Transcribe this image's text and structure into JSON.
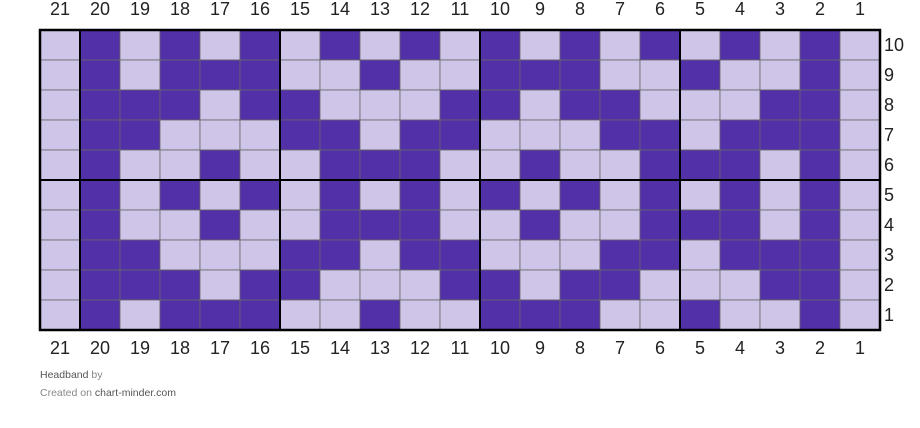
{
  "chart": {
    "columns": [
      21,
      20,
      19,
      18,
      17,
      16,
      15,
      14,
      13,
      12,
      11,
      10,
      9,
      8,
      7,
      6,
      5,
      4,
      3,
      2,
      1
    ],
    "rows": [
      {
        "label": 10,
        "cells": [
          0,
          1,
          0,
          1,
          0,
          1,
          0,
          1,
          0,
          1,
          0,
          1,
          0,
          1,
          0,
          1,
          0,
          1,
          0,
          1,
          0
        ]
      },
      {
        "label": 9,
        "cells": [
          0,
          1,
          0,
          1,
          1,
          1,
          0,
          0,
          1,
          0,
          0,
          1,
          1,
          1,
          0,
          0,
          1,
          0,
          0,
          1,
          0
        ]
      },
      {
        "label": 8,
        "cells": [
          0,
          1,
          1,
          1,
          0,
          1,
          1,
          0,
          0,
          0,
          1,
          1,
          0,
          1,
          1,
          0,
          0,
          0,
          1,
          1,
          0
        ]
      },
      {
        "label": 7,
        "cells": [
          0,
          1,
          1,
          0,
          0,
          0,
          1,
          1,
          0,
          1,
          1,
          0,
          0,
          0,
          1,
          1,
          0,
          1,
          1,
          1,
          0
        ]
      },
      {
        "label": 6,
        "cells": [
          0,
          1,
          0,
          0,
          1,
          0,
          0,
          1,
          1,
          1,
          0,
          0,
          1,
          0,
          0,
          1,
          1,
          1,
          0,
          1,
          0
        ]
      },
      {
        "label": 5,
        "cells": [
          0,
          1,
          0,
          1,
          0,
          1,
          0,
          1,
          0,
          1,
          0,
          1,
          0,
          1,
          0,
          1,
          0,
          1,
          0,
          1,
          0
        ]
      },
      {
        "label": 4,
        "cells": [
          0,
          1,
          0,
          0,
          1,
          0,
          0,
          1,
          1,
          1,
          0,
          0,
          1,
          0,
          0,
          1,
          1,
          1,
          0,
          1,
          0
        ]
      },
      {
        "label": 3,
        "cells": [
          0,
          1,
          1,
          0,
          0,
          0,
          1,
          1,
          0,
          1,
          1,
          0,
          0,
          0,
          1,
          1,
          0,
          1,
          1,
          1,
          0
        ]
      },
      {
        "label": 2,
        "cells": [
          0,
          1,
          1,
          1,
          0,
          1,
          1,
          0,
          0,
          0,
          1,
          1,
          0,
          1,
          1,
          0,
          0,
          0,
          1,
          1,
          0
        ]
      },
      {
        "label": 1,
        "cells": [
          0,
          1,
          0,
          1,
          1,
          1,
          0,
          0,
          1,
          0,
          0,
          1,
          1,
          1,
          0,
          0,
          1,
          0,
          0,
          1,
          0
        ]
      }
    ],
    "colors": [
      "#cfc5e8",
      "#5230a8"
    ]
  },
  "footer": {
    "title": "Headband",
    "by": "by",
    "created": "Created on",
    "site": "chart-minder.com"
  }
}
